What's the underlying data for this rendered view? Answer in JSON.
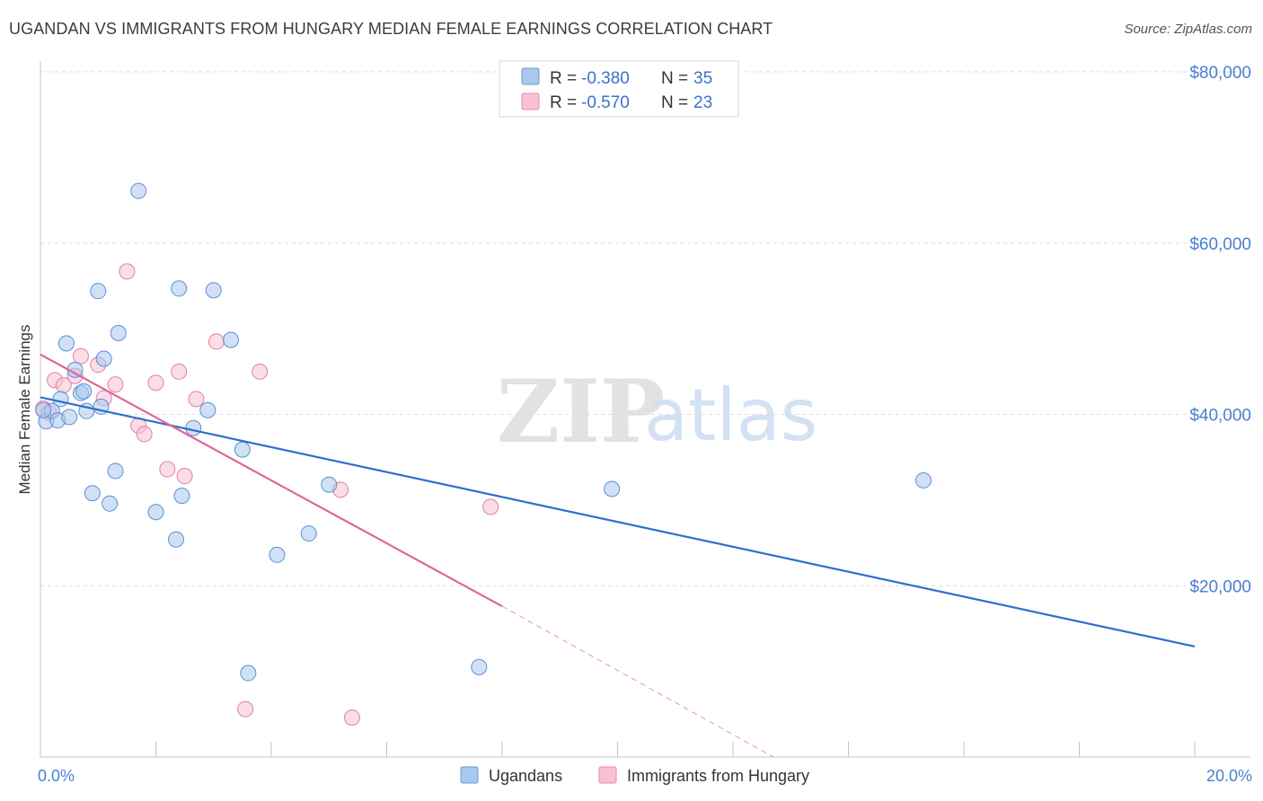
{
  "header": {
    "title": "UGANDAN VS IMMIGRANTS FROM HUNGARY MEDIAN FEMALE EARNINGS CORRELATION CHART",
    "source": "Source: ZipAtlas.com"
  },
  "watermark": {
    "zip": "ZIP",
    "atlas": "atlas"
  },
  "legend": {
    "rows": [
      {
        "r_label": "R = ",
        "r_value": "-0.380",
        "n_label": "N = ",
        "n_value": "35",
        "color": "#a9c8ee",
        "stroke": "#6a9ad8"
      },
      {
        "r_label": "R = ",
        "r_value": "-0.570",
        "n_label": "N = ",
        "n_value": "23",
        "color": "#f6c1d3",
        "stroke": "#e88aaa"
      }
    ]
  },
  "chart_data": {
    "type": "scatter",
    "title": "UGANDAN VS IMMIGRANTS FROM HUNGARY MEDIAN FEMALE EARNINGS CORRELATION CHART",
    "xlabel": "",
    "ylabel": "Median Female Earnings",
    "xlim": [
      0,
      20
    ],
    "ylim": [
      0,
      80000
    ],
    "x_tick_labels": [
      "0.0%",
      "20.0%"
    ],
    "y_ticks": [
      20000,
      40000,
      60000,
      80000
    ],
    "y_tick_labels": [
      "$20,000",
      "$40,000",
      "$60,000",
      "$80,000"
    ],
    "grid": true,
    "legend_position": "top-center",
    "series": [
      {
        "name": "Ugandans",
        "color": "#a9c8ee",
        "stroke": "#5b8fd6",
        "line_color": "#2f6fcb",
        "trend": {
          "x": [
            0.0,
            20.0
          ],
          "y": [
            42000,
            12900
          ]
        },
        "points": [
          [
            0.1,
            39200
          ],
          [
            0.2,
            40400
          ],
          [
            0.3,
            39300
          ],
          [
            0.35,
            41800
          ],
          [
            0.45,
            48300
          ],
          [
            0.5,
            39700
          ],
          [
            0.6,
            45200
          ],
          [
            0.7,
            42500
          ],
          [
            0.75,
            42700
          ],
          [
            0.8,
            40400
          ],
          [
            0.9,
            30800
          ],
          [
            1.0,
            54400
          ],
          [
            1.05,
            40900
          ],
          [
            1.1,
            46500
          ],
          [
            1.2,
            29600
          ],
          [
            1.3,
            33400
          ],
          [
            1.35,
            49500
          ],
          [
            1.7,
            66100
          ],
          [
            2.0,
            28600
          ],
          [
            2.35,
            25400
          ],
          [
            2.4,
            54700
          ],
          [
            2.45,
            30500
          ],
          [
            2.65,
            38400
          ],
          [
            2.9,
            40500
          ],
          [
            3.0,
            54500
          ],
          [
            3.3,
            48700
          ],
          [
            3.5,
            35900
          ],
          [
            3.6,
            9800
          ],
          [
            4.1,
            23600
          ],
          [
            4.65,
            26100
          ],
          [
            5.0,
            31800
          ],
          [
            7.6,
            10500
          ],
          [
            9.9,
            31300
          ],
          [
            15.3,
            32300
          ],
          [
            0.05,
            40500
          ]
        ]
      },
      {
        "name": "Immigrants from Hungary",
        "color": "#f6c1d3",
        "stroke": "#e37ea2",
        "line_color": "#e06797",
        "trend": {
          "x": [
            0.0,
            8.0
          ],
          "y": [
            47000,
            17600
          ]
        },
        "trend_dashed": {
          "x": [
            8.0,
            12.7
          ],
          "y": [
            17600,
            0
          ]
        },
        "points": [
          [
            0.05,
            40700
          ],
          [
            0.15,
            40200
          ],
          [
            0.25,
            44000
          ],
          [
            0.4,
            43400
          ],
          [
            0.6,
            44500
          ],
          [
            0.7,
            46800
          ],
          [
            1.0,
            45800
          ],
          [
            1.1,
            41900
          ],
          [
            1.3,
            43500
          ],
          [
            1.5,
            56700
          ],
          [
            1.7,
            38700
          ],
          [
            1.8,
            37700
          ],
          [
            2.0,
            43700
          ],
          [
            2.2,
            33600
          ],
          [
            2.4,
            45000
          ],
          [
            2.5,
            32800
          ],
          [
            2.7,
            41800
          ],
          [
            3.05,
            48500
          ],
          [
            3.55,
            5600
          ],
          [
            3.8,
            45000
          ],
          [
            5.2,
            31200
          ],
          [
            5.4,
            4600
          ],
          [
            7.8,
            29200
          ]
        ]
      }
    ]
  }
}
